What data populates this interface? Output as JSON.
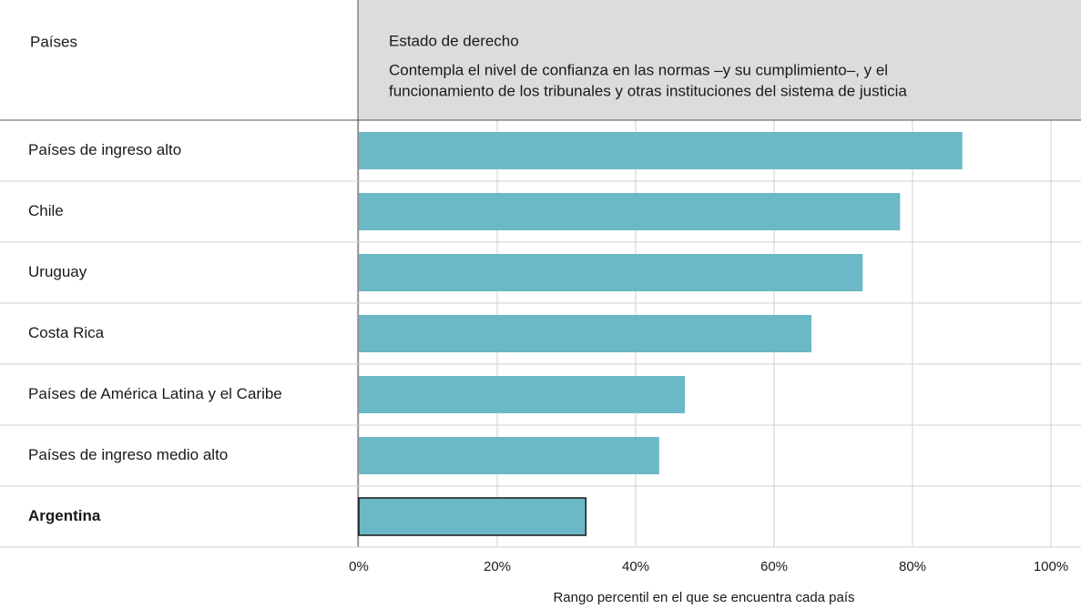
{
  "chart_data": {
    "type": "bar",
    "orientation": "horizontal",
    "category_header": "Países",
    "title": "Estado de derecho",
    "subtitle": [
      "Contempla el nivel de confianza en las normas –y su cumplimiento–, y el",
      "funcionamiento de los tribunales y otras instituciones del sistema de justicia"
    ],
    "xlabel": "Rango percentil en el que se encuentra cada país",
    "categories": [
      "Países de ingreso alto",
      "Chile",
      "Uruguay",
      "Costa Rica",
      "Países de América Latina y el Caribe",
      "Países de ingreso medio alto",
      "Argentina"
    ],
    "values": [
      87.2,
      78.2,
      72.8,
      65.4,
      47.1,
      43.4,
      32.8
    ],
    "color": "#6bb8c6",
    "highlight_index": 6,
    "xlim": [
      0,
      100
    ],
    "xticks": [
      {
        "value": 0,
        "label": "0%"
      },
      {
        "value": 20,
        "label": "20%"
      },
      {
        "value": 40,
        "label": "40%"
      },
      {
        "value": 60,
        "label": "60%"
      },
      {
        "value": 80,
        "label": "80%"
      },
      {
        "value": 100,
        "label": "100%"
      }
    ],
    "grid": true
  }
}
